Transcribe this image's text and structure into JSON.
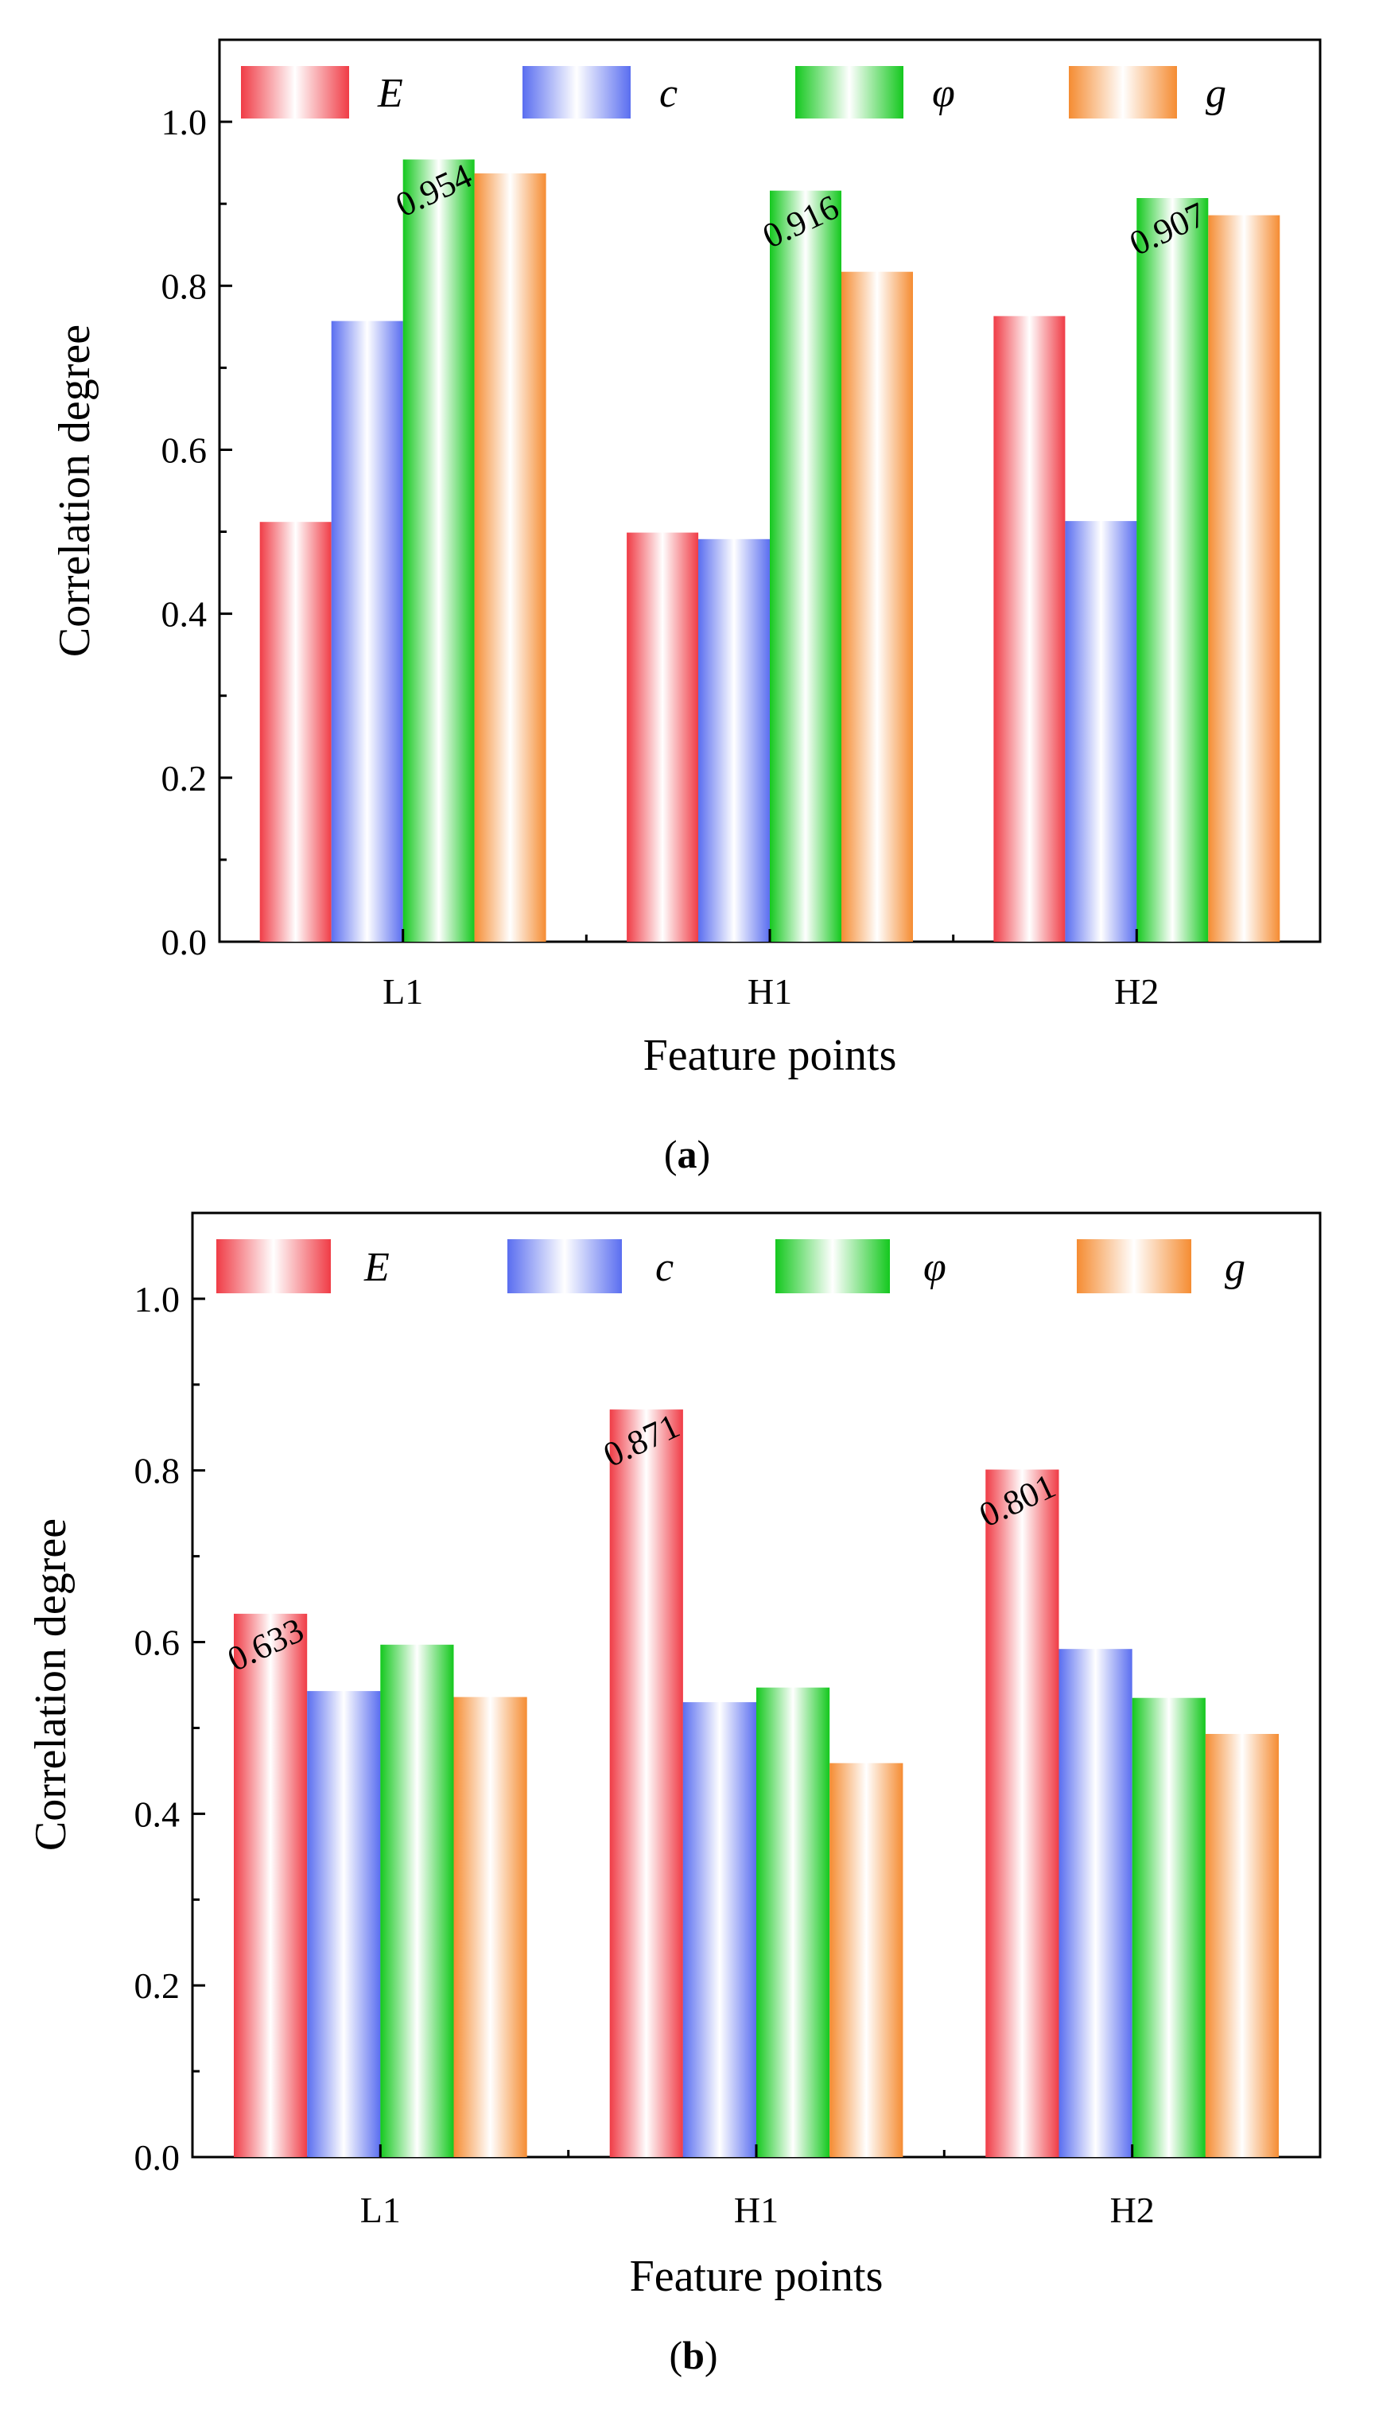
{
  "colors": {
    "E": "#f03c46",
    "c": "#5a6ef0",
    "phi": "#14c81e",
    "g": "#f58c32"
  },
  "chart_data": [
    {
      "type": "bar",
      "panel": "a",
      "caption": "a",
      "categories": [
        "L1",
        "H1",
        "H2"
      ],
      "series": [
        {
          "name": "E",
          "values": [
            0.512,
            0.499,
            0.763
          ]
        },
        {
          "name": "c",
          "values": [
            0.757,
            0.491,
            0.513
          ]
        },
        {
          "name": "φ",
          "values": [
            0.954,
            0.916,
            0.907
          ]
        },
        {
          "name": "g",
          "values": [
            0.937,
            0.817,
            0.886
          ]
        }
      ],
      "data_labels": [
        {
          "series": 2,
          "category": 0,
          "text": "0.954"
        },
        {
          "series": 2,
          "category": 1,
          "text": "0.916"
        },
        {
          "series": 2,
          "category": 2,
          "text": "0.907"
        }
      ],
      "xlabel": "Feature points",
      "ylabel": "Correlation degree",
      "ylim": [
        0,
        1.1
      ],
      "yticks": [
        "0.0",
        "0.2",
        "0.4",
        "0.6",
        "0.8",
        "1.0"
      ],
      "legend": "top",
      "grid": false
    },
    {
      "type": "bar",
      "panel": "b",
      "caption": "b",
      "categories": [
        "L1",
        "H1",
        "H2"
      ],
      "series": [
        {
          "name": "E",
          "values": [
            0.633,
            0.871,
            0.801
          ]
        },
        {
          "name": "c",
          "values": [
            0.543,
            0.53,
            0.592
          ]
        },
        {
          "name": "φ",
          "values": [
            0.597,
            0.547,
            0.535
          ]
        },
        {
          "name": "g",
          "values": [
            0.536,
            0.459,
            0.493
          ]
        }
      ],
      "data_labels": [
        {
          "series": 0,
          "category": 0,
          "text": "0.633"
        },
        {
          "series": 0,
          "category": 1,
          "text": "0.871"
        },
        {
          "series": 0,
          "category": 2,
          "text": "0.801"
        }
      ],
      "xlabel": "Feature points",
      "ylabel": "Correlation degree",
      "ylim": [
        0,
        1.1
      ],
      "yticks": [
        "0.0",
        "0.2",
        "0.4",
        "0.6",
        "0.8",
        "1.0"
      ],
      "legend": "top",
      "grid": false
    }
  ]
}
